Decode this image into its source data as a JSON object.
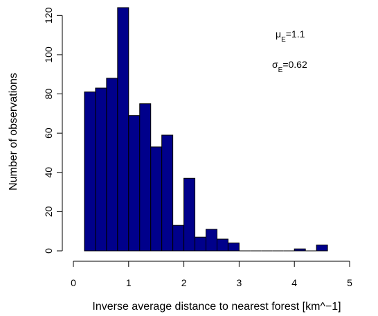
{
  "chart_data": {
    "type": "bar",
    "bin_width": 0.2,
    "bins": [
      {
        "x0": 0.2,
        "x1": 0.4,
        "count": 81
      },
      {
        "x0": 0.4,
        "x1": 0.6,
        "count": 83
      },
      {
        "x0": 0.6,
        "x1": 0.8,
        "count": 88
      },
      {
        "x0": 0.8,
        "x1": 1.0,
        "count": 124
      },
      {
        "x0": 1.0,
        "x1": 1.2,
        "count": 69
      },
      {
        "x0": 1.2,
        "x1": 1.4,
        "count": 75
      },
      {
        "x0": 1.4,
        "x1": 1.6,
        "count": 53
      },
      {
        "x0": 1.6,
        "x1": 1.8,
        "count": 59
      },
      {
        "x0": 1.8,
        "x1": 2.0,
        "count": 13
      },
      {
        "x0": 2.0,
        "x1": 2.2,
        "count": 37
      },
      {
        "x0": 2.2,
        "x1": 2.4,
        "count": 7
      },
      {
        "x0": 2.4,
        "x1": 2.6,
        "count": 11
      },
      {
        "x0": 2.6,
        "x1": 2.8,
        "count": 6
      },
      {
        "x0": 2.8,
        "x1": 3.0,
        "count": 4
      },
      {
        "x0": 3.0,
        "x1": 3.2,
        "count": 0
      },
      {
        "x0": 3.2,
        "x1": 3.4,
        "count": 0
      },
      {
        "x0": 3.4,
        "x1": 3.6,
        "count": 0
      },
      {
        "x0": 3.6,
        "x1": 3.8,
        "count": 0
      },
      {
        "x0": 3.8,
        "x1": 4.0,
        "count": 0
      },
      {
        "x0": 4.0,
        "x1": 4.2,
        "count": 1
      },
      {
        "x0": 4.2,
        "x1": 4.4,
        "count": 0
      },
      {
        "x0": 4.4,
        "x1": 4.6,
        "count": 3
      }
    ],
    "xlabel": "Inverse average distance to nearest forest [km^−1]",
    "ylabel": "Number of observations",
    "xlim": [
      0,
      5
    ],
    "ylim": [
      0,
      124
    ],
    "x_ticks": [
      "0",
      "1",
      "2",
      "3",
      "4",
      "5"
    ],
    "y_ticks": [
      "0",
      "20",
      "40",
      "60",
      "80",
      "100",
      "120"
    ],
    "grid": false,
    "bar_color": "#00008B",
    "annotations": {
      "mu_symbol": "μ",
      "mu_sub": "E",
      "mu_value": "=1.1",
      "sigma_symbol": "σ",
      "sigma_sub": "E",
      "sigma_value": "=0.62"
    }
  }
}
